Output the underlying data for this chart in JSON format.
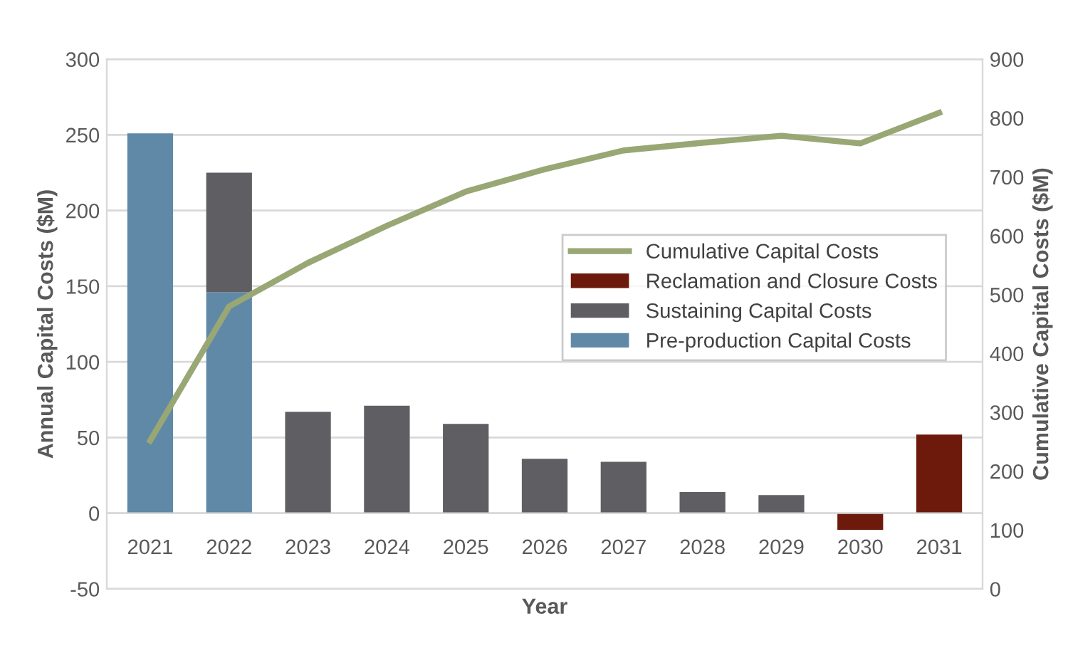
{
  "chart_data": {
    "type": "bar",
    "stacked": true,
    "xlabel": "Year",
    "ylabel": "Annual Capital Costs ($M)",
    "y2label": "Cumulative Capital Costs ($M)",
    "categories": [
      "2021",
      "2022",
      "2023",
      "2024",
      "2025",
      "2026",
      "2027",
      "2028",
      "2029",
      "2030",
      "2031"
    ],
    "series": [
      {
        "name": "Pre-production Capital Costs",
        "color": "#6089a8",
        "values": [
          251,
          146,
          0,
          0,
          0,
          0,
          0,
          0,
          0,
          0,
          0
        ]
      },
      {
        "name": "Sustaining Capital Costs",
        "color": "#5f5f63",
        "values": [
          0,
          79,
          67,
          71,
          59,
          36,
          34,
          14,
          12,
          0,
          0
        ]
      },
      {
        "name": "Reclamation and Closure Costs",
        "color": "#6d1a0c",
        "values": [
          0,
          0,
          0,
          0,
          0,
          0,
          0,
          0,
          0,
          -11,
          52
        ]
      },
      {
        "name": "Cumulative Capital Costs",
        "color": "#98a774",
        "type": "line",
        "axis": "y2",
        "values": [
          252,
          480,
          554,
          617,
          675,
          713,
          745,
          758,
          770,
          757,
          809
        ]
      }
    ],
    "ylim": [
      -50,
      300
    ],
    "yticks": [
      -50,
      0,
      50,
      100,
      150,
      200,
      250,
      300
    ],
    "y2lim": [
      0,
      900
    ],
    "y2ticks": [
      0,
      100,
      200,
      300,
      400,
      500,
      600,
      700,
      800,
      900
    ],
    "grid": "y",
    "legend": "center right",
    "marker": "none"
  }
}
